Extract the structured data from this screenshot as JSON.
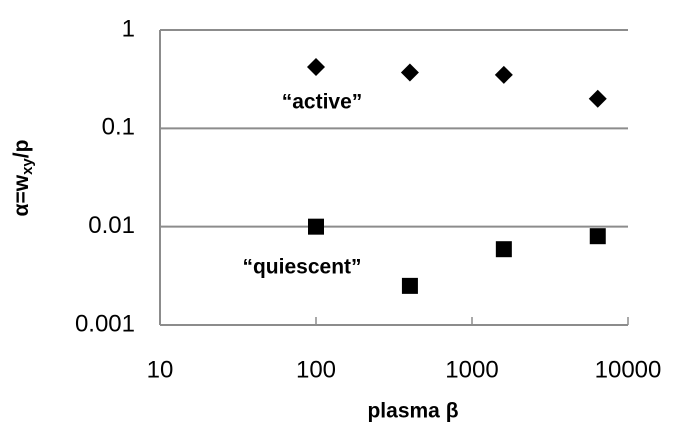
{
  "chart_data": {
    "type": "scatter",
    "ylabel": [
      "α=w",
      "xy",
      "/p"
    ],
    "xlabel": "plasma β",
    "annotations": [
      "“active”",
      "“quiescent”"
    ],
    "log_x": true,
    "log_y": true,
    "xlim": [
      10,
      10000
    ],
    "xticks": [
      10,
      100,
      1000,
      10000
    ],
    "ylim": [
      0.001,
      1
    ],
    "yticks": [
      0.001,
      0.01,
      0.1,
      1
    ],
    "grid": true,
    "series": [
      {
        "marker": "diamond",
        "color": "#000000",
        "x": [
          100,
          400,
          1600,
          6400
        ],
        "values": [
          0.42,
          0.37,
          0.35,
          0.2
        ]
      },
      {
        "marker": "square",
        "color": "#000000",
        "x": [
          100,
          400,
          1600,
          6400
        ],
        "values": [
          0.01,
          0.0025,
          0.0059,
          0.008
        ]
      }
    ]
  }
}
